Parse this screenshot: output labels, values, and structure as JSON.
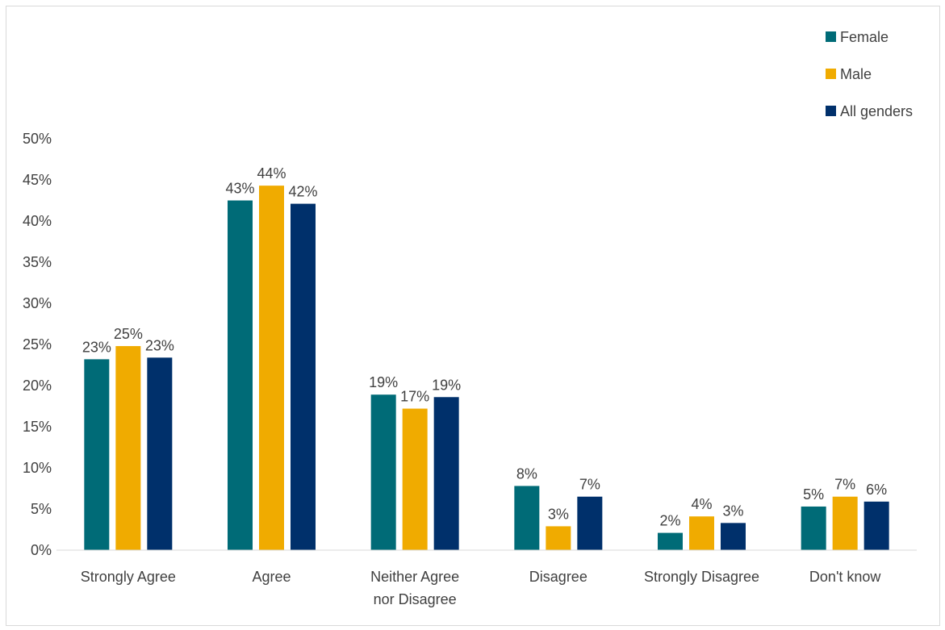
{
  "chart_data": {
    "type": "bar",
    "categories": [
      "Strongly Agree",
      "Agree",
      "Neither Agree nor Disagree",
      "Disagree",
      "Strongly Disagree",
      "Don't know"
    ],
    "category_lines": [
      [
        "Strongly Agree"
      ],
      [
        "Agree"
      ],
      [
        "Neither Agree",
        "nor Disagree"
      ],
      [
        "Disagree"
      ],
      [
        "Strongly Disagree"
      ],
      [
        "Don't know"
      ]
    ],
    "series": [
      {
        "name": "Female",
        "color": "#006b77",
        "values": [
          0.232,
          0.425,
          0.189,
          0.078,
          0.021,
          0.053
        ],
        "labels": [
          "23%",
          "43%",
          "19%",
          "8%",
          "2%",
          "5%"
        ]
      },
      {
        "name": "Male",
        "color": "#f0ab00",
        "values": [
          0.248,
          0.443,
          0.172,
          0.029,
          0.041,
          0.065
        ],
        "labels": [
          "25%",
          "44%",
          "17%",
          "3%",
          "4%",
          "7%"
        ]
      },
      {
        "name": "All genders",
        "color": "#00306b",
        "values": [
          0.234,
          0.421,
          0.186,
          0.065,
          0.033,
          0.059
        ],
        "labels": [
          "23%",
          "42%",
          "19%",
          "7%",
          "3%",
          "6%"
        ]
      }
    ],
    "yticks": [
      "0%",
      "5%",
      "10%",
      "15%",
      "20%",
      "25%",
      "30%",
      "35%",
      "40%",
      "45%",
      "50%"
    ],
    "ylim": [
      0,
      0.5
    ],
    "title": "",
    "xlabel": "",
    "ylabel": "",
    "legend_position": "top-right",
    "grid": false
  }
}
